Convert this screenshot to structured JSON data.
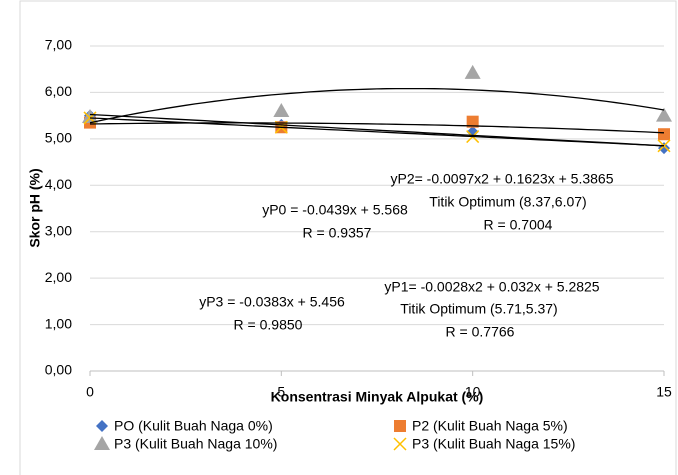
{
  "chart_data": {
    "type": "scatter",
    "xlabel": "Konsentrasi Minyak Alpukat (%)",
    "ylabel": "Skor pH (%)",
    "x": [
      0,
      5,
      10,
      15
    ],
    "xlim": [
      0,
      15
    ],
    "xticks": [
      0,
      5,
      10,
      15
    ],
    "ylim": [
      0,
      7
    ],
    "yticks": [
      {
        "value": 0,
        "label": "0,00"
      },
      {
        "value": 1,
        "label": "1,00"
      },
      {
        "value": 2,
        "label": "2,00"
      },
      {
        "value": 3,
        "label": "3,00"
      },
      {
        "value": 4,
        "label": "4,00"
      },
      {
        "value": 5,
        "label": "5,00"
      },
      {
        "value": 6,
        "label": "6,00"
      },
      {
        "value": 7,
        "label": "7,00"
      }
    ],
    "grid": true,
    "legend": "bottom",
    "series": [
      {
        "name": "PO (Kulit Buah Naga 0%)",
        "color": "#4472c4",
        "marker": "diamond",
        "trendline": "linear",
        "values": [
          5.5,
          5.3,
          5.15,
          4.8
        ]
      },
      {
        "name": "P2 (Kulit Buah Naga 5%)",
        "color": "#ed7d31",
        "marker": "square",
        "trendline": "polynomial",
        "values": [
          5.35,
          5.25,
          5.37,
          5.1
        ]
      },
      {
        "name": "P3 (Kulit Buah Naga 10%)",
        "color": "#a5a5a5",
        "marker": "triangle",
        "trendline": "polynomial",
        "values": [
          5.47,
          5.6,
          6.42,
          5.5
        ]
      },
      {
        "name": "P3 (Kulit Buah Naga 15%)",
        "color": "#ffc000",
        "marker": "x",
        "trendline": "linear",
        "values": [
          5.45,
          5.25,
          5.05,
          4.85
        ]
      }
    ],
    "annotations": [
      "yP2= -0.0097x2 + 0.1623x + 5.3865",
      "Titik Optimum (8.37,6.07)",
      "R = 0.7004",
      "yP0 = -0.0439x + 5.568",
      "R = 0.9357",
      "yP1= -0.0028x2 + 0.032x + 5.2825",
      "Titik Optimum (5.71,5.37)",
      "R = 0.7766",
      "yP3 = -0.0383x + 5.456",
      "R = 0.9850"
    ]
  }
}
